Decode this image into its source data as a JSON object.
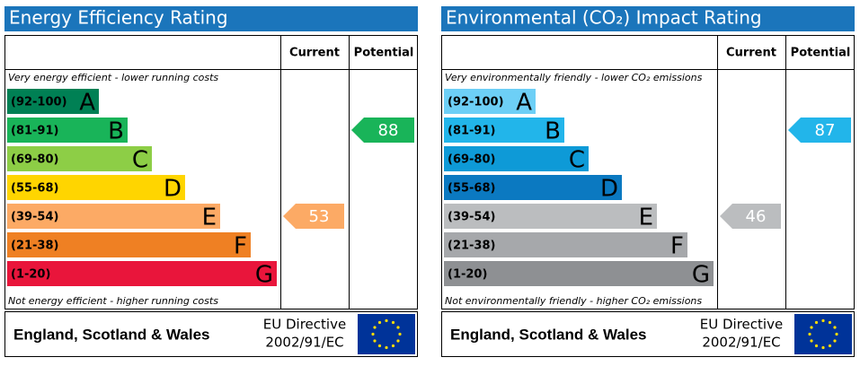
{
  "panels": [
    {
      "title": "Energy Efficiency Rating",
      "headers": {
        "current": "Current",
        "potential": "Potential"
      },
      "top_note": "Very energy efficient - lower running costs",
      "bottom_note": "Not energy efficient - higher running costs",
      "bands": [
        {
          "range": "(92-100)",
          "letter": "A",
          "color": "#008054"
        },
        {
          "range": "(81-91)",
          "letter": "B",
          "color": "#19b459"
        },
        {
          "range": "(69-80)",
          "letter": "C",
          "color": "#8dce46"
        },
        {
          "range": "(55-68)",
          "letter": "D",
          "color": "#ffd500"
        },
        {
          "range": "(39-54)",
          "letter": "E",
          "color": "#fcaa65"
        },
        {
          "range": "(21-38)",
          "letter": "F",
          "color": "#ef8023"
        },
        {
          "range": "(1-20)",
          "letter": "G",
          "color": "#e9153b"
        }
      ],
      "current": 53,
      "potential": 88,
      "footer": {
        "region": "England, Scotland & Wales",
        "directive": "EU Directive",
        "directive_code": "2002/91/EC"
      }
    },
    {
      "title": "Environmental (CO₂) Impact Rating",
      "headers": {
        "current": "Current",
        "potential": "Potential"
      },
      "top_note": "Very environmentally friendly - lower CO₂ emissions",
      "bottom_note": "Not environmentally friendly - higher CO₂ emissions",
      "bands": [
        {
          "range": "(92-100)",
          "letter": "A",
          "color": "#6dcff6"
        },
        {
          "range": "(81-91)",
          "letter": "B",
          "color": "#22b5ea"
        },
        {
          "range": "(69-80)",
          "letter": "C",
          "color": "#0e9ad7"
        },
        {
          "range": "(55-68)",
          "letter": "D",
          "color": "#0b79c1"
        },
        {
          "range": "(39-54)",
          "letter": "E",
          "color": "#bbbdbf"
        },
        {
          "range": "(21-38)",
          "letter": "F",
          "color": "#a6a8ab"
        },
        {
          "range": "(1-20)",
          "letter": "G",
          "color": "#8e9093"
        }
      ],
      "current": 46,
      "potential": 87,
      "footer": {
        "region": "England, Scotland & Wales",
        "directive": "EU Directive",
        "directive_code": "2002/91/EC"
      }
    }
  ]
}
